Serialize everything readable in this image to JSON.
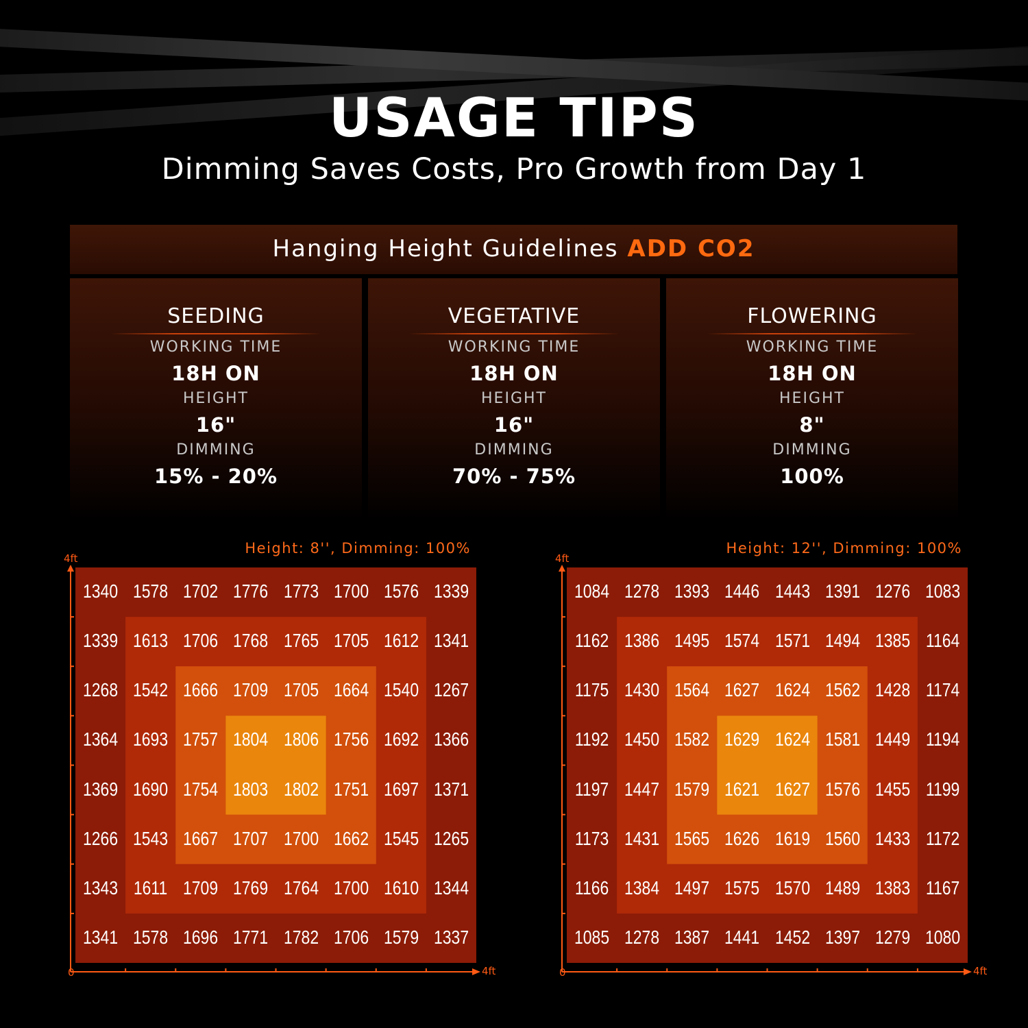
{
  "header": {
    "title": "USAGE TIPS",
    "subtitle": "Dimming Saves Costs, Pro Growth from Day 1"
  },
  "guidelines": {
    "title": "Hanging Height Guidelines",
    "highlight": "ADD CO2",
    "stages": [
      {
        "name": "SEEDING",
        "working_time_label": "WORKING TIME",
        "working_time": "18H ON",
        "height_label": "HEIGHT",
        "height": "16\"",
        "dimming_label": "DIMMING",
        "dimming": "15% - 20%"
      },
      {
        "name": "VEGETATIVE",
        "working_time_label": "WORKING TIME",
        "working_time": "18H ON",
        "height_label": "HEIGHT",
        "height": "16\"",
        "dimming_label": "DIMMING",
        "dimming": "70% - 75%"
      },
      {
        "name": "FLOWERING",
        "working_time_label": "WORKING TIME",
        "working_time": "18H ON",
        "height_label": "HEIGHT",
        "height": "8\"",
        "dimming_label": "DIMMING",
        "dimming": "100%"
      }
    ]
  },
  "maps": [
    {
      "title": "Height: 8'', Dimming: 100%",
      "y_axis_label": "4ft",
      "x_axis_label": "4ft",
      "origin": "0",
      "rows": [
        [
          1340,
          1578,
          1702,
          1776,
          1773,
          1700,
          1576,
          1339
        ],
        [
          1339,
          1613,
          1706,
          1768,
          1765,
          1705,
          1612,
          1341
        ],
        [
          1268,
          1542,
          1666,
          1709,
          1705,
          1664,
          1540,
          1267
        ],
        [
          1364,
          1693,
          1757,
          1804,
          1806,
          1756,
          1692,
          1366
        ],
        [
          1369,
          1690,
          1754,
          1803,
          1802,
          1751,
          1697,
          1371
        ],
        [
          1266,
          1543,
          1667,
          1707,
          1700,
          1662,
          1545,
          1265
        ],
        [
          1343,
          1611,
          1709,
          1769,
          1764,
          1700,
          1610,
          1344
        ],
        [
          1341,
          1578,
          1696,
          1771,
          1782,
          1706,
          1579,
          1337
        ]
      ]
    },
    {
      "title": "Height: 12'', Dimming: 100%",
      "y_axis_label": "4ft",
      "x_axis_label": "4ft",
      "origin": "0",
      "rows": [
        [
          1084,
          1278,
          1393,
          1446,
          1443,
          1391,
          1276,
          1083
        ],
        [
          1162,
          1386,
          1495,
          1574,
          1571,
          1494,
          1385,
          1164
        ],
        [
          1175,
          1430,
          1564,
          1627,
          1624,
          1562,
          1428,
          1174
        ],
        [
          1192,
          1450,
          1582,
          1629,
          1624,
          1581,
          1449,
          1194
        ],
        [
          1197,
          1447,
          1579,
          1621,
          1627,
          1576,
          1455,
          1199
        ],
        [
          1173,
          1431,
          1565,
          1626,
          1619,
          1560,
          1433,
          1172
        ],
        [
          1166,
          1384,
          1497,
          1575,
          1570,
          1489,
          1383,
          1167
        ],
        [
          1085,
          1278,
          1387,
          1441,
          1452,
          1397,
          1279,
          1080
        ]
      ]
    }
  ]
}
